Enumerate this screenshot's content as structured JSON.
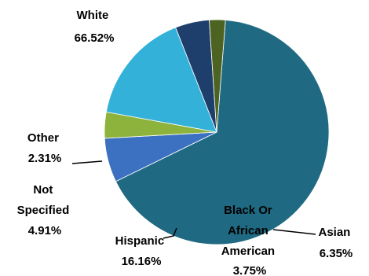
{
  "chart_data": {
    "type": "pie",
    "slices": [
      {
        "name": "White",
        "value": 66.52,
        "label": "66.52%",
        "color": "#1F6A82"
      },
      {
        "name": "Asian",
        "value": 6.35,
        "label": "6.35%",
        "color": "#3C70C0"
      },
      {
        "name": "Black Or African American",
        "value": 3.75,
        "label": "3.75%",
        "color": "#8DB33D"
      },
      {
        "name": "Hispanic",
        "value": 16.16,
        "label": "16.16%",
        "color": "#33B1D9"
      },
      {
        "name": "Not Specified",
        "value": 4.91,
        "label": "4.91%",
        "color": "#1E3F6C"
      },
      {
        "name": "Other",
        "value": 2.31,
        "label": "2.31%",
        "color": "#4D6321"
      }
    ],
    "label_lines": {
      "white": [
        "White",
        "66.52%"
      ],
      "other": [
        "Other",
        "2.31%"
      ],
      "not_specified": [
        "Not",
        "Specified",
        "4.91%"
      ],
      "hispanic": [
        "Hispanic",
        "16.16%"
      ],
      "black": [
        "Black Or",
        "African",
        "American",
        "3.75%"
      ],
      "asian": [
        "Asian",
        "6.35%"
      ]
    }
  }
}
